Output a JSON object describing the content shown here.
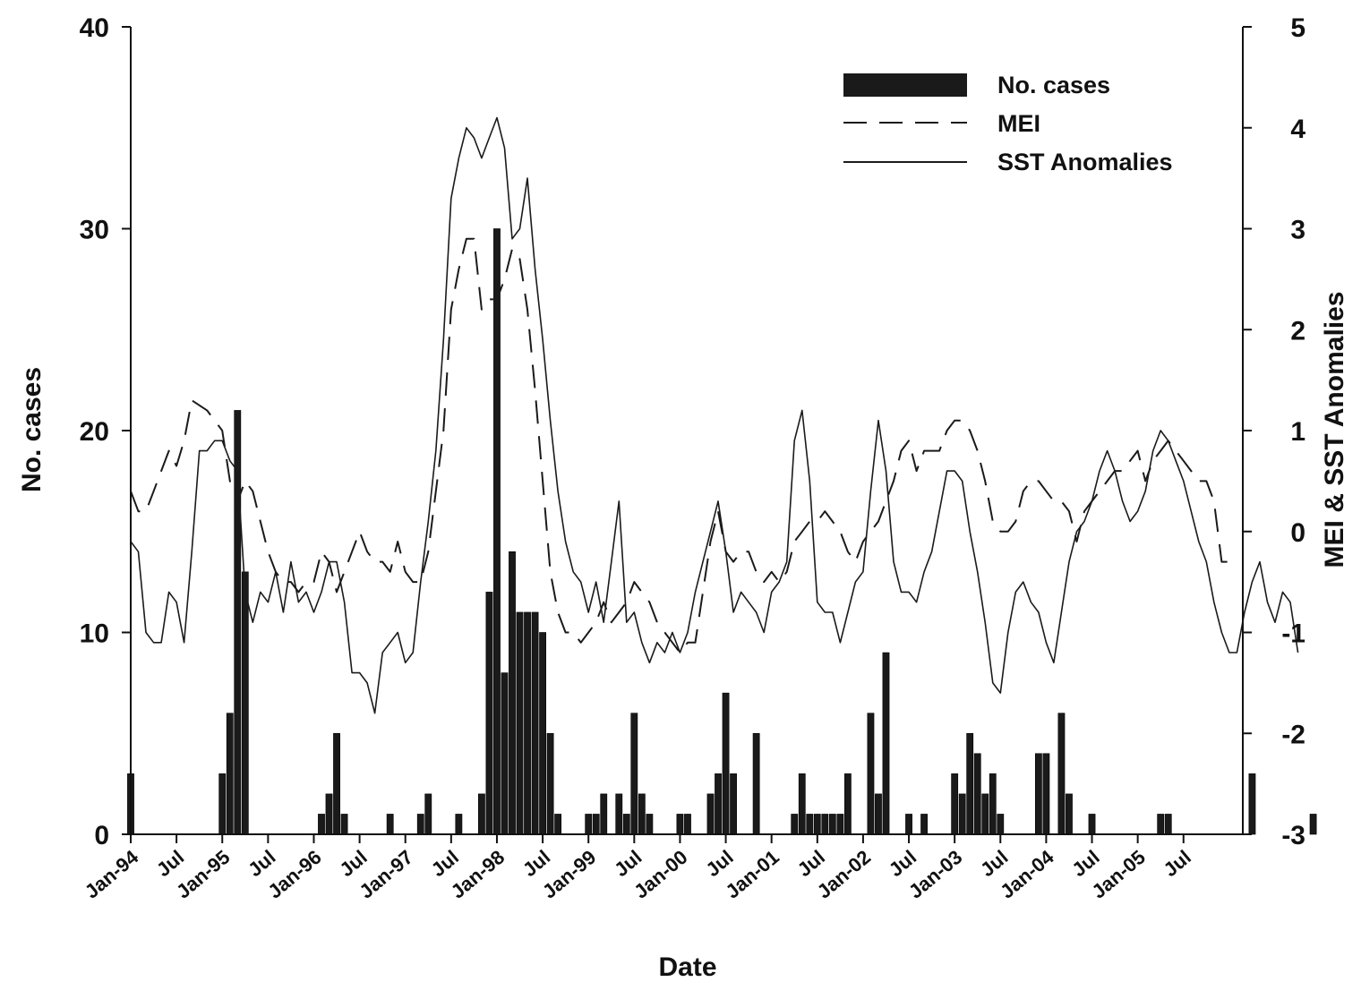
{
  "chart_data": {
    "type": "bar",
    "xlabel": "Date",
    "ylabel": "No. cases",
    "ylabel_right": "MEI & SST Anomalies",
    "ylim": [
      0,
      40
    ],
    "ylim_right": [
      -3,
      5
    ],
    "y_ticks": [
      "0",
      "10",
      "20",
      "30",
      "40"
    ],
    "y_right_ticks": [
      "-3",
      "-2",
      "-1",
      "0",
      "1",
      "2",
      "3",
      "4",
      "5"
    ],
    "x_ticks": [
      "Jan-94",
      "Jul",
      "Jan-95",
      "Jul",
      "Jan-96",
      "Jul",
      "Jan-97",
      "Jul",
      "Jan-98",
      "Jul",
      "Jan-99",
      "Jul",
      "Jan-00",
      "Jul",
      "Jan-01",
      "Jul",
      "Jan-02",
      "Jul",
      "Jan-03",
      "Jul",
      "Jan-04",
      "Jul",
      "Jan-05",
      "Jul"
    ],
    "x_start": "1994-01",
    "legend": {
      "position": "top-right",
      "entries": [
        "No. cases",
        "MEI",
        "SST Anomalies"
      ]
    },
    "series": [
      {
        "name": "No. cases",
        "type": "bar",
        "axis": "left",
        "color": "#1a1a1a",
        "values": [
          3,
          0,
          0,
          0,
          0,
          0,
          0,
          0,
          0,
          0,
          0,
          0,
          3,
          6,
          21,
          13,
          0,
          0,
          0,
          0,
          0,
          0,
          0,
          0,
          0,
          1,
          2,
          5,
          1,
          0,
          0,
          0,
          0,
          0,
          1,
          0,
          0,
          0,
          1,
          2,
          0,
          0,
          0,
          1,
          0,
          0,
          2,
          12,
          30,
          8,
          14,
          11,
          11,
          11,
          10,
          5,
          1,
          0,
          0,
          0,
          1,
          1,
          2,
          0,
          2,
          1,
          6,
          2,
          1,
          0,
          0,
          0,
          1,
          1,
          0,
          0,
          2,
          3,
          7,
          3,
          0,
          0,
          5,
          0,
          0,
          0,
          0,
          1,
          3,
          1,
          1,
          1,
          1,
          1,
          3,
          0,
          0,
          6,
          2,
          9,
          0,
          0,
          1,
          0,
          1,
          0,
          0,
          0,
          3,
          2,
          5,
          4,
          2,
          3,
          1,
          0,
          0,
          0,
          0,
          4,
          4,
          0,
          6,
          2,
          0,
          0,
          1,
          0,
          0,
          0,
          0,
          0,
          0,
          0,
          0,
          1,
          1,
          0,
          0,
          0,
          0,
          0,
          0,
          0,
          0,
          0,
          0,
          3,
          0,
          0,
          0,
          0,
          0,
          0,
          0,
          1,
          0,
          0
        ]
      },
      {
        "name": "MEI",
        "type": "line",
        "axis": "right",
        "style": "dashed",
        "color": "#1a1a1a",
        "values": [
          0.4,
          0.2,
          0.2,
          0.4,
          0.6,
          0.8,
          0.65,
          0.9,
          1.3,
          1.25,
          1.2,
          1.1,
          1.0,
          0.5,
          0.3,
          0.5,
          0.4,
          0.1,
          -0.2,
          -0.4,
          -0.5,
          -0.5,
          -0.6,
          -0.5,
          -0.5,
          -0.2,
          -0.3,
          -0.6,
          -0.4,
          -0.2,
          0.0,
          -0.2,
          -0.3,
          -0.3,
          -0.4,
          -0.1,
          -0.4,
          -0.5,
          -0.5,
          -0.2,
          0.4,
          1.0,
          2.2,
          2.6,
          2.9,
          2.9,
          2.2,
          2.3,
          2.3,
          2.5,
          2.8,
          2.7,
          2.2,
          1.4,
          0.5,
          -0.4,
          -0.8,
          -1.0,
          -1.0,
          -1.1,
          -1.0,
          -0.9,
          -0.7,
          -0.9,
          -0.8,
          -0.7,
          -0.5,
          -0.6,
          -0.7,
          -0.9,
          -1.0,
          -1.1,
          -1.2,
          -1.1,
          -1.1,
          -0.6,
          -0.1,
          0.2,
          -0.2,
          -0.3,
          -0.2,
          -0.2,
          -0.4,
          -0.5,
          -0.4,
          -0.5,
          -0.4,
          -0.1,
          0.0,
          0.1,
          0.1,
          0.2,
          0.1,
          0.0,
          -0.2,
          -0.3,
          -0.1,
          0.0,
          0.1,
          0.3,
          0.5,
          0.8,
          0.9,
          0.6,
          0.8,
          0.8,
          0.8,
          1.0,
          1.1,
          1.1,
          1.0,
          0.8,
          0.5,
          0.1,
          0.0,
          0.0,
          0.1,
          0.4,
          0.5,
          0.5,
          0.4,
          0.3,
          0.3,
          0.2,
          -0.1,
          0.2,
          0.3,
          0.4,
          0.5,
          0.6,
          0.6,
          0.7,
          0.8,
          0.5,
          0.7,
          0.8,
          0.9,
          0.8,
          0.7,
          0.6,
          0.5,
          0.5,
          0.3,
          -0.3,
          -0.3
        ]
      },
      {
        "name": "SST Anomalies",
        "type": "line",
        "axis": "right",
        "style": "solid",
        "color": "#1a1a1a",
        "values": [
          -0.1,
          -0.2,
          -1.0,
          -1.1,
          -1.1,
          -0.6,
          -0.7,
          -1.1,
          -0.2,
          0.8,
          0.8,
          0.9,
          0.9,
          0.7,
          0.6,
          -0.6,
          -0.9,
          -0.6,
          -0.7,
          -0.4,
          -0.8,
          -0.3,
          -0.7,
          -0.6,
          -0.8,
          -0.6,
          -0.3,
          -0.3,
          -0.7,
          -1.4,
          -1.4,
          -1.5,
          -1.8,
          -1.2,
          -1.1,
          -1.0,
          -1.3,
          -1.2,
          -0.5,
          0.1,
          0.8,
          1.9,
          3.3,
          3.7,
          4.0,
          3.9,
          3.7,
          3.9,
          4.1,
          3.8,
          2.9,
          3.0,
          3.5,
          2.6,
          1.9,
          1.1,
          0.4,
          -0.1,
          -0.4,
          -0.5,
          -0.8,
          -0.5,
          -0.9,
          -0.3,
          0.3,
          -0.9,
          -0.8,
          -1.1,
          -1.3,
          -1.1,
          -1.2,
          -1.0,
          -1.2,
          -1.0,
          -0.6,
          -0.3,
          0.0,
          0.3,
          -0.2,
          -0.8,
          -0.6,
          -0.7,
          -0.8,
          -1.0,
          -0.6,
          -0.5,
          -0.3,
          0.9,
          1.2,
          0.5,
          -0.7,
          -0.8,
          -0.8,
          -1.1,
          -0.8,
          -0.5,
          -0.4,
          0.4,
          1.1,
          0.6,
          -0.3,
          -0.6,
          -0.6,
          -0.7,
          -0.4,
          -0.2,
          0.2,
          0.6,
          0.6,
          0.5,
          0.0,
          -0.4,
          -0.9,
          -1.5,
          -1.6,
          -1.0,
          -0.6,
          -0.5,
          -0.7,
          -0.8,
          -1.1,
          -1.3,
          -0.8,
          -0.3,
          0.0,
          0.1,
          0.3,
          0.6,
          0.8,
          0.6,
          0.3,
          0.1,
          0.2,
          0.4,
          0.8,
          1.0,
          0.9,
          0.7,
          0.5,
          0.2,
          -0.1,
          -0.3,
          -0.7,
          -1.0,
          -1.2,
          -1.2,
          -0.8,
          -0.5,
          -0.3,
          -0.7,
          -0.9,
          -0.6,
          -0.7,
          -1.2
        ]
      }
    ]
  }
}
